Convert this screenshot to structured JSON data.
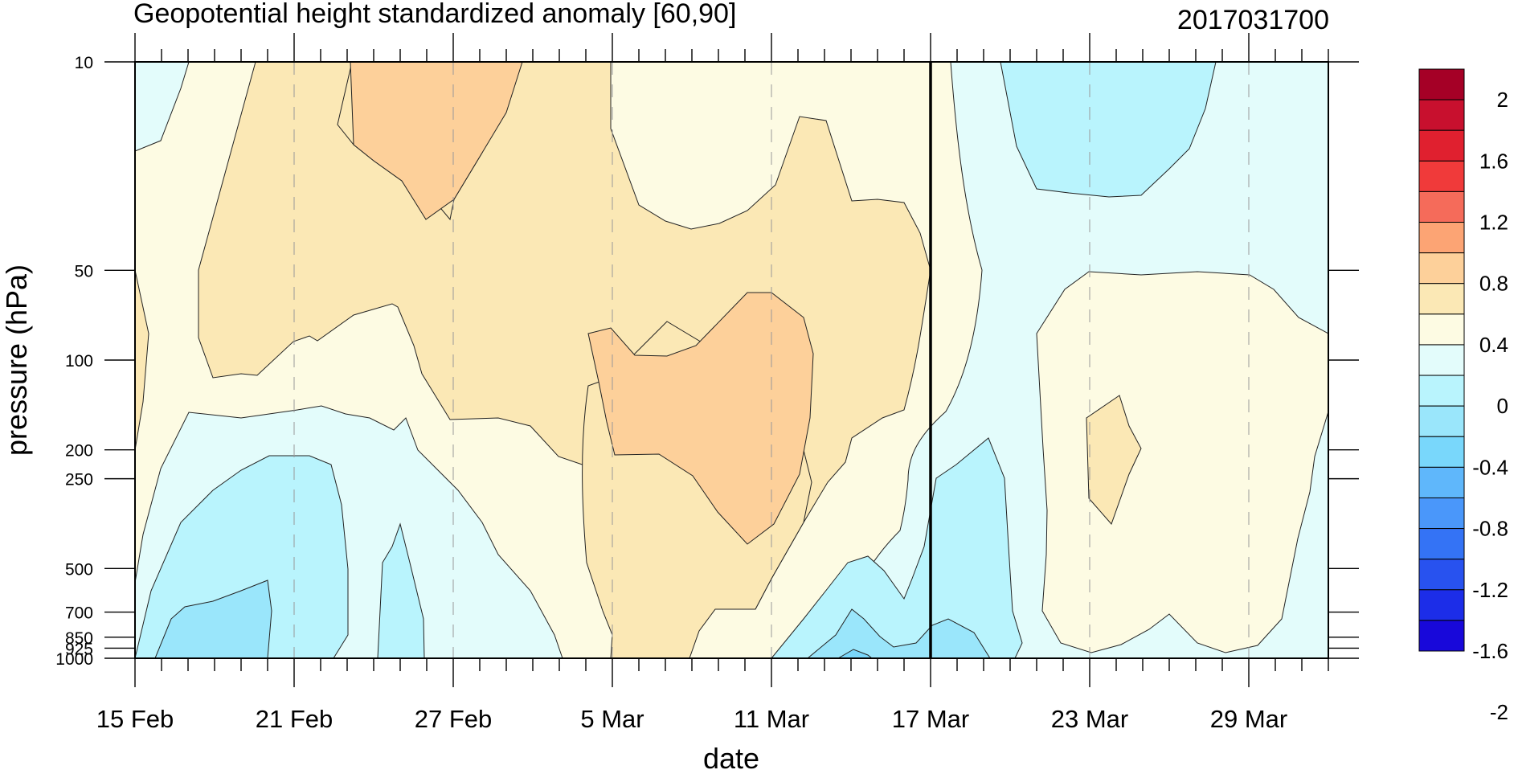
{
  "chart_data": {
    "type": "heatmap",
    "title": "Geopotential height standardized anomaly [60,90]",
    "run_label": "2017031700",
    "xlabel": "date",
    "ylabel": "pressure (hPa)",
    "x_start": "15 Feb",
    "x_end": "1 Apr",
    "x_ticklabels": [
      "15 Feb",
      "21 Feb",
      "27 Feb",
      "5 Mar",
      "11 Mar",
      "17 Mar",
      "23 Mar",
      "29 Mar"
    ],
    "y_ticklabels": [
      "10",
      "50",
      "100",
      "200",
      "250",
      "500",
      "700",
      "850",
      "925",
      "1000"
    ],
    "y_scale": "log",
    "ylim": [
      1000,
      10
    ],
    "analysis_forecast_divider": "17 Mar",
    "grid_dashed_vertical": true,
    "colorbar": {
      "labels": [
        "2",
        "1.6",
        "1.2",
        "0.8",
        "0.4",
        "0",
        "-0.4",
        "-0.8",
        "-1.2",
        "-1.6",
        "-2"
      ],
      "colors": [
        "#a50026",
        "#c8102e",
        "#e0202f",
        "#f03a3a",
        "#f56b5a",
        "#fca474",
        "#fdd09a",
        "#fbe8b5",
        "#fdfbe3",
        "#e3fcfb",
        "#b9f4fd",
        "#9ae6fb",
        "#79d7fb",
        "#5fb7fb",
        "#4a97fa",
        "#3473f5",
        "#2852ef",
        "#1c2de8",
        "#1808da"
      ]
    },
    "contour_colors": {
      "c_neg_06": "#79d7fb",
      "c_neg_04": "#9ae6fb",
      "c_neg_02": "#b9f4fd",
      "c_neg_00": "#e3fcfb",
      "c_pos_00": "#fdfbe3",
      "c_pos_02": "#fbe8b5",
      "c_pos_04": "#fdd09a"
    }
  }
}
